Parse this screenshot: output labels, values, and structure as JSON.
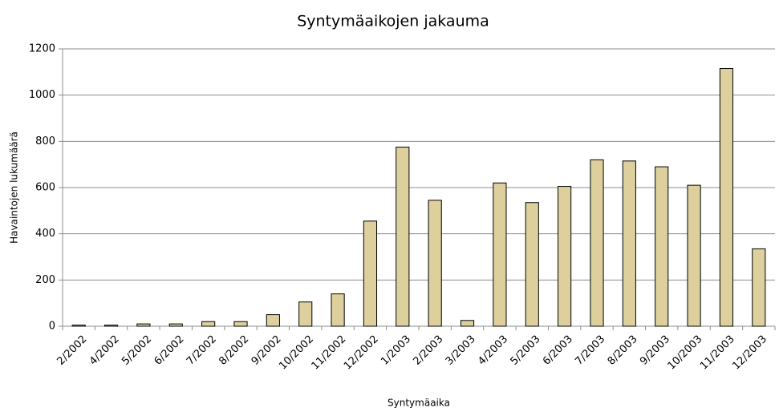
{
  "chart_data": {
    "type": "bar",
    "title": "Syntymäaikojen jakauma",
    "x_label": "Syntymäaika",
    "y_label": "Havaintojen lukumäärä",
    "categories": [
      "2/2002",
      "4/2002",
      "5/2002",
      "6/2002",
      "7/2002",
      "8/2002",
      "9/2002",
      "10/2002",
      "11/2002",
      "12/2002",
      "1/2003",
      "2/2003",
      "3/2003",
      "4/2003",
      "5/2003",
      "6/2003",
      "7/2003",
      "8/2003",
      "9/2003",
      "10/2003",
      "11/2003",
      "12/2003"
    ],
    "values": [
      5,
      5,
      10,
      10,
      20,
      20,
      50,
      105,
      140,
      455,
      775,
      545,
      25,
      620,
      535,
      605,
      720,
      715,
      690,
      610,
      1115,
      335
    ],
    "color": "#ddd09d",
    "ylim": [
      0,
      1200
    ],
    "yticks": [
      0,
      200,
      400,
      600,
      800,
      1000,
      1200
    ],
    "grid": true
  }
}
